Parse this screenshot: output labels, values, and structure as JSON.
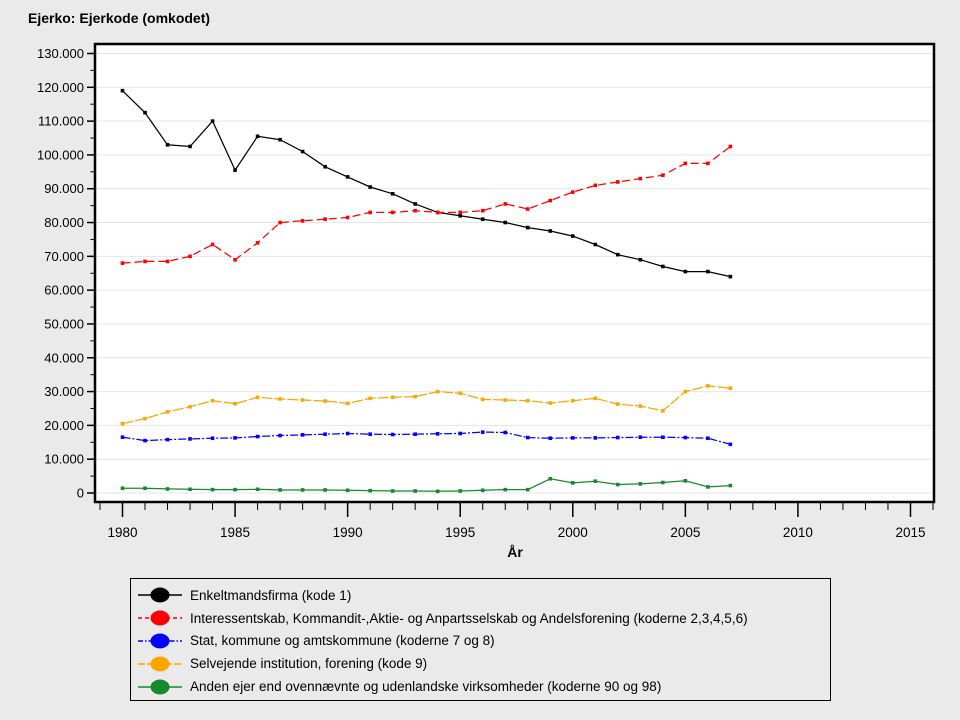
{
  "title": "Ejerko: Ejerkode (omkodet)",
  "colors": {
    "page_background": "#eaeaea",
    "plot_background": "#ffffff",
    "grid": "#e6e6e6",
    "frame": "#000000",
    "text": "#000000"
  },
  "chart_data": {
    "type": "line",
    "title": "Ejerko: Ejerkode (omkodet)",
    "xlabel": "År",
    "ylabel": "",
    "ylim": [
      0,
      130000
    ],
    "x_axis_range": [
      1978.8,
      2016.3
    ],
    "grid": "horizontal",
    "legend_position": "bottom",
    "y_tick_labels": [
      "0",
      "10.000",
      "20.000",
      "30.000",
      "40.000",
      "50.000",
      "60.000",
      "70.000",
      "80.000",
      "90.000",
      "100.000",
      "110.000",
      "120.000",
      "130.000"
    ],
    "y_tick_values": [
      0,
      10000,
      20000,
      30000,
      40000,
      50000,
      60000,
      70000,
      80000,
      90000,
      100000,
      110000,
      120000,
      130000
    ],
    "x_major_tick_labels": [
      "1980",
      "1985",
      "1990",
      "1995",
      "2000",
      "2005",
      "2010",
      "2015"
    ],
    "x_major_tick_values": [
      1980,
      1985,
      1990,
      1995,
      2000,
      2005,
      2010,
      2015
    ],
    "x_minor_tick_range": [
      1979,
      2016
    ],
    "x": [
      1980,
      1981,
      1982,
      1983,
      1984,
      1985,
      1986,
      1987,
      1988,
      1989,
      1990,
      1991,
      1992,
      1993,
      1994,
      1995,
      1996,
      1997,
      1998,
      1999,
      2000,
      2001,
      2002,
      2003,
      2004,
      2005,
      2006,
      2007
    ],
    "series": [
      {
        "name": "Enkeltmandsfirma (kode 1)",
        "color": "#000000",
        "line_style": "solid",
        "values": [
          119000,
          112500,
          103000,
          102500,
          110000,
          95500,
          105500,
          104500,
          101000,
          96500,
          93500,
          90500,
          88500,
          85500,
          83000,
          82000,
          81000,
          80000,
          78500,
          77500,
          76000,
          73500,
          70500,
          69000,
          67000,
          65500,
          65500,
          64000
        ]
      },
      {
        "name": "Interessentskab, Kommandit-,Aktie- og Anpartsselskab og Andelsforening (koderne 2,3,4,5,6)",
        "color": "#ff0000",
        "line_style": "dashed",
        "values": [
          68000,
          68500,
          68500,
          70000,
          73500,
          69000,
          74000,
          80000,
          80500,
          81000,
          81500,
          83000,
          83000,
          83500,
          83000,
          83000,
          83500,
          85500,
          84000,
          86500,
          89000,
          91000,
          92000,
          93000,
          94000,
          97500,
          97500,
          102500
        ]
      },
      {
        "name": "Stat, kommune og amtskommune (koderne 7 og 8)",
        "color": "#0000ff",
        "line_style": "dash-dot",
        "values": [
          16500,
          15500,
          15800,
          16000,
          16200,
          16300,
          16700,
          17000,
          17200,
          17400,
          17600,
          17400,
          17300,
          17400,
          17500,
          17600,
          18000,
          17900,
          16400,
          16200,
          16300,
          16300,
          16400,
          16500,
          16500,
          16400,
          16200,
          14400
        ]
      },
      {
        "name": "Selvejende institution, forening (kode 9)",
        "color": "#ffa500",
        "line_style": "long-dash",
        "values": [
          20500,
          22000,
          24000,
          25500,
          27300,
          26400,
          28300,
          27800,
          27500,
          27200,
          26500,
          28000,
          28300,
          28500,
          30000,
          29500,
          27700,
          27500,
          27300,
          26600,
          27300,
          28000,
          26300,
          25700,
          24300,
          30000,
          31700,
          31000
        ]
      },
      {
        "name": "Anden ejer end ovennævnte og udenlandske virksomheder (koderne 90 og 98)",
        "color": "#17882b",
        "line_style": "solid",
        "values": [
          1400,
          1400,
          1200,
          1100,
          1000,
          1000,
          1100,
          900,
          900,
          900,
          800,
          700,
          600,
          600,
          500,
          600,
          800,
          1000,
          1000,
          4200,
          3000,
          3500,
          2500,
          2700,
          3100,
          3600,
          1800,
          2200
        ]
      }
    ]
  }
}
